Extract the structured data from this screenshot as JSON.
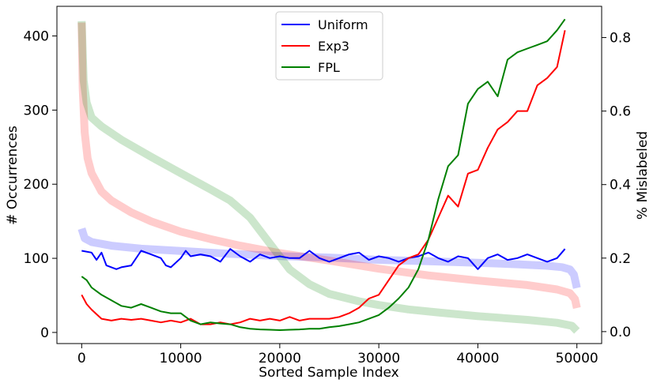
{
  "chart_data": {
    "type": "line",
    "xlabel": "Sorted Sample Index",
    "ylabel_left": "# Occurrences",
    "ylabel_right": "% Mislabeled",
    "xlim": [
      -2500,
      52500
    ],
    "ylim_left": [
      -15,
      440
    ],
    "ylim_right": [
      -0.0325,
      0.885
    ],
    "x_ticks": [
      0,
      10000,
      20000,
      30000,
      40000,
      50000
    ],
    "y_left_ticks": [
      0,
      100,
      200,
      300,
      400
    ],
    "y_right_ticks": [
      0.0,
      0.2,
      0.4,
      0.6,
      0.8
    ],
    "y_right_tick_labels": [
      "0.0",
      "0.2",
      "0.4",
      "0.6",
      "0.8"
    ],
    "legend_position": "top-center",
    "grid": false,
    "series": [
      {
        "name": "Uniform",
        "color": "#0000ff",
        "axis": "left",
        "style": "faded-thick",
        "x": [
          0,
          300,
          1000,
          3000,
          6000,
          10000,
          15000,
          20000,
          25000,
          30000,
          35000,
          40000,
          44000,
          47000,
          48500,
          49300,
          49700,
          50000
        ],
        "y": [
          140,
          127,
          122,
          117,
          113,
          110,
          106,
          103,
          101,
          98,
          96,
          94,
          92,
          90,
          88,
          85,
          78,
          60
        ]
      },
      {
        "name": "Exp3",
        "color": "#ff0000",
        "axis": "left",
        "style": "faded-thick",
        "x": [
          0,
          100,
          300,
          600,
          1000,
          2000,
          3000,
          5000,
          7000,
          10000,
          13000,
          16000,
          20000,
          25000,
          30000,
          35000,
          40000,
          45000,
          48000,
          49300,
          49800,
          50000
        ],
        "y": [
          418,
          330,
          270,
          235,
          215,
          190,
          178,
          162,
          150,
          136,
          126,
          117,
          107,
          97,
          86,
          77,
          70,
          64,
          58,
          53,
          45,
          33
        ]
      },
      {
        "name": "FPL",
        "color": "#008000",
        "axis": "left",
        "style": "faded-thick",
        "x": [
          0,
          200,
          500,
          1000,
          2000,
          4000,
          7000,
          10000,
          13000,
          15000,
          17000,
          19000,
          21000,
          23000,
          25000,
          28000,
          30000,
          33000,
          36000,
          40000,
          45000,
          48000,
          49500,
          50000
        ],
        "y": [
          420,
          340,
          310,
          290,
          278,
          260,
          237,
          215,
          193,
          178,
          155,
          120,
          85,
          65,
          52,
          42,
          37,
          31,
          27,
          22,
          17,
          13,
          9,
          2
        ]
      },
      {
        "name": "Uniform",
        "color": "#0000ff",
        "axis": "right",
        "style": "solid",
        "x": [
          0,
          1000,
          1500,
          2000,
          2500,
          3000,
          3500,
          4000,
          5000,
          6000,
          7000,
          8000,
          8500,
          9000,
          10000,
          10500,
          11000,
          12000,
          13000,
          14000,
          15000,
          16000,
          17000,
          18000,
          19000,
          20000,
          21000,
          22000,
          23000,
          24000,
          25000,
          26000,
          27000,
          28000,
          29000,
          30000,
          31000,
          32000,
          33000,
          34000,
          35000,
          36000,
          37000,
          38000,
          39000,
          40000,
          41000,
          42000,
          43000,
          44000,
          45000,
          46000,
          47000,
          48000,
          48800
        ],
        "y": [
          0.22,
          0.215,
          0.195,
          0.215,
          0.18,
          0.175,
          0.17,
          0.175,
          0.18,
          0.22,
          0.21,
          0.2,
          0.18,
          0.175,
          0.2,
          0.22,
          0.205,
          0.21,
          0.205,
          0.19,
          0.225,
          0.205,
          0.19,
          0.21,
          0.2,
          0.205,
          0.2,
          0.2,
          0.22,
          0.2,
          0.19,
          0.2,
          0.21,
          0.215,
          0.195,
          0.205,
          0.2,
          0.19,
          0.2,
          0.205,
          0.215,
          0.2,
          0.19,
          0.205,
          0.2,
          0.17,
          0.2,
          0.21,
          0.195,
          0.2,
          0.21,
          0.2,
          0.19,
          0.2,
          0.225
        ]
      },
      {
        "name": "Exp3",
        "color": "#ff0000",
        "axis": "right",
        "style": "solid",
        "x": [
          0,
          500,
          1000,
          2000,
          3000,
          4000,
          5000,
          6000,
          7000,
          8000,
          9000,
          10000,
          11000,
          12000,
          13000,
          14000,
          15000,
          16000,
          17000,
          18000,
          19000,
          20000,
          21000,
          22000,
          23000,
          24000,
          25000,
          26000,
          27000,
          28000,
          29000,
          30000,
          31000,
          32000,
          33000,
          34000,
          35000,
          36000,
          37000,
          38000,
          39000,
          40000,
          41000,
          42000,
          43000,
          44000,
          45000,
          46000,
          47000,
          48000,
          48800
        ],
        "y": [
          0.1,
          0.075,
          0.06,
          0.035,
          0.03,
          0.035,
          0.032,
          0.035,
          0.03,
          0.025,
          0.03,
          0.025,
          0.035,
          0.02,
          0.02,
          0.025,
          0.02,
          0.025,
          0.035,
          0.03,
          0.035,
          0.03,
          0.04,
          0.03,
          0.035,
          0.035,
          0.035,
          0.04,
          0.05,
          0.065,
          0.09,
          0.1,
          0.14,
          0.18,
          0.2,
          0.21,
          0.25,
          0.31,
          0.37,
          0.34,
          0.43,
          0.44,
          0.5,
          0.55,
          0.57,
          0.6,
          0.6,
          0.67,
          0.69,
          0.72,
          0.82
        ]
      },
      {
        "name": "FPL",
        "color": "#008000",
        "axis": "right",
        "style": "solid",
        "x": [
          0,
          500,
          1000,
          1500,
          2000,
          3000,
          4000,
          5000,
          6000,
          7000,
          8000,
          9000,
          10000,
          11000,
          12000,
          13000,
          14000,
          15000,
          16000,
          17000,
          18000,
          19000,
          20000,
          21000,
          22000,
          23000,
          24000,
          25000,
          26000,
          27000,
          28000,
          29000,
          30000,
          31000,
          32000,
          33000,
          34000,
          35000,
          36000,
          37000,
          38000,
          39000,
          40000,
          41000,
          42000,
          43000,
          44000,
          45000,
          46000,
          47000,
          48000,
          48800
        ],
        "y": [
          0.15,
          0.14,
          0.12,
          0.11,
          0.1,
          0.085,
          0.07,
          0.065,
          0.075,
          0.065,
          0.055,
          0.05,
          0.05,
          0.03,
          0.02,
          0.025,
          0.022,
          0.02,
          0.012,
          0.008,
          0.006,
          0.005,
          0.004,
          0.005,
          0.006,
          0.008,
          0.008,
          0.012,
          0.015,
          0.02,
          0.025,
          0.035,
          0.045,
          0.065,
          0.09,
          0.12,
          0.17,
          0.25,
          0.36,
          0.45,
          0.48,
          0.62,
          0.66,
          0.68,
          0.64,
          0.74,
          0.76,
          0.77,
          0.78,
          0.79,
          0.82,
          0.85
        ]
      }
    ]
  },
  "legend": [
    {
      "label": "Uniform",
      "color": "#0000ff"
    },
    {
      "label": "Exp3",
      "color": "#ff0000"
    },
    {
      "label": "FPL",
      "color": "#008000"
    }
  ]
}
